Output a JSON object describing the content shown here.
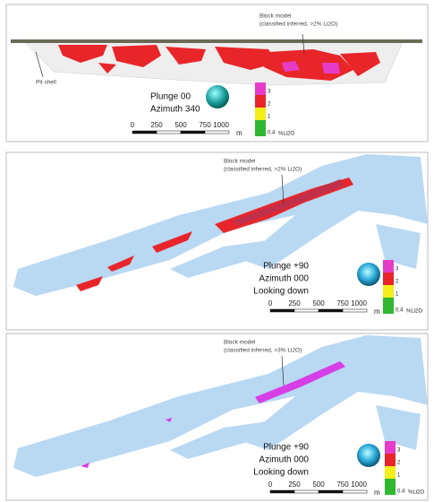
{
  "panels": [
    {
      "annotation": {
        "title": "Block model",
        "subtitle": "(classified inferred, >2% Li2O)"
      },
      "pit_label": "Pit shell",
      "view": [
        "Plunge 00",
        "Azimuth 340"
      ],
      "legend": {
        "labels": [
          3,
          2,
          1,
          0.4
        ],
        "unit": "%Li2O"
      },
      "scale": {
        "ticks": [
          0,
          250,
          500,
          750,
          1000
        ],
        "unit": "m"
      }
    },
    {
      "annotation": {
        "title": "Block model",
        "subtitle": "(classified inferred, >2% Li2O)"
      },
      "view": [
        "Plunge +90",
        "Azimuth 000",
        "Looking down"
      ],
      "legend": {
        "labels": [
          3,
          2,
          1,
          0.4
        ],
        "unit": "%Li2O"
      },
      "scale": {
        "ticks": [
          0,
          250,
          500,
          750,
          1000
        ],
        "unit": "m"
      }
    },
    {
      "annotation": {
        "title": "Block model",
        "subtitle": "(classified inferred, >3% Li2O)"
      },
      "view": [
        "Plunge +90",
        "Azimuth 000",
        "Looking down"
      ],
      "legend": {
        "labels": [
          3,
          2,
          1,
          0.4
        ],
        "unit": "%Li2O"
      },
      "scale": {
        "ticks": [
          0,
          250,
          500,
          750,
          1000
        ],
        "unit": "m"
      }
    }
  ]
}
